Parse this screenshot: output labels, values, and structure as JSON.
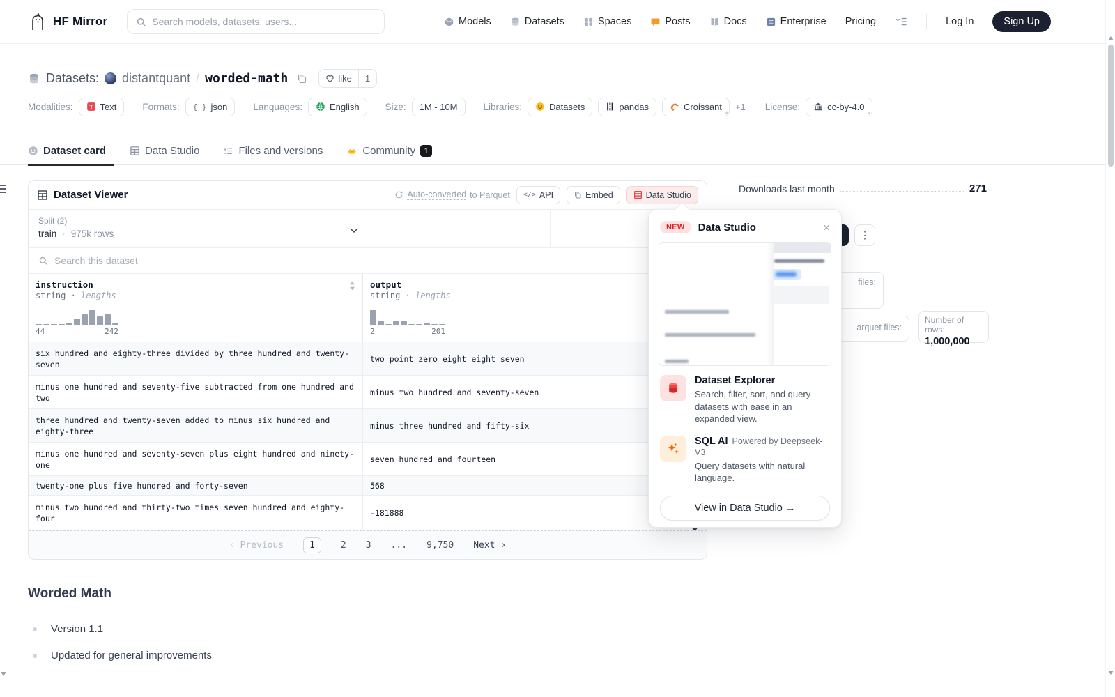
{
  "nav": {
    "brand": "HF Mirror",
    "search_placeholder": "Search models, datasets, users...",
    "items": [
      {
        "label": "Models"
      },
      {
        "label": "Datasets"
      },
      {
        "label": "Spaces"
      },
      {
        "label": "Posts"
      },
      {
        "label": "Docs"
      },
      {
        "label": "Enterprise"
      },
      {
        "label": "Pricing"
      }
    ],
    "login": "Log In",
    "signup": "Sign Up"
  },
  "header": {
    "section": "Datasets:",
    "owner": "distantquant",
    "slash": "/",
    "name": "worded-math",
    "like_label": "like",
    "like_count": "1",
    "meta": {
      "modalities_label": "Modalities:",
      "text_badge": "Text",
      "formats_label": "Formats:",
      "json_badge": "json",
      "json_icon": "{ }",
      "languages_label": "Languages:",
      "english_badge": "English",
      "size_label": "Size:",
      "size_badge": "1M - 10M",
      "libraries_label": "Libraries:",
      "datasets_badge": "Datasets",
      "pandas_badge": "pandas",
      "croissant_badge": "Croissant",
      "more": "+1",
      "license_label": "License:",
      "license_badge": "cc-by-4.0"
    }
  },
  "tabs": {
    "card": "Dataset card",
    "studio": "Data Studio",
    "files": "Files and versions",
    "community": "Community",
    "community_count": "1"
  },
  "viewer": {
    "title": "Dataset Viewer",
    "auto_converted": "Auto-converted",
    "to_parquet": "to Parquet",
    "api_label": "API",
    "api_icon": "</>",
    "embed_label": "Embed",
    "studio_label": "Data Studio",
    "split_label": "Split (2)",
    "split_value": "train",
    "dot": "·",
    "split_rows": "975k rows",
    "search_placeholder": "Search this dataset",
    "columns": {
      "c1": {
        "name": "instruction",
        "type": "string",
        "subtype": "lengths",
        "min": "44",
        "max": "242"
      },
      "c2": {
        "name": "output",
        "type": "string",
        "subtype": "lengths",
        "min": "2",
        "max": "201"
      }
    },
    "rows": [
      {
        "i": "six hundred and eighty-three divided by three hundred and twenty-seven",
        "o": "two point zero eight eight seven"
      },
      {
        "i": "minus one hundred and seventy-five subtracted from one hundred and two",
        "o": "minus two hundred and seventy-seven"
      },
      {
        "i": "three hundred and twenty-seven added to minus six hundred and eighty-three",
        "o": "minus three hundred and fifty-six"
      },
      {
        "i": "minus one hundred and seventy-seven plus eight hundred and ninety-one",
        "o": "seven hundred and fourteen"
      },
      {
        "i": "twenty-one plus five hundred and forty-seven",
        "o": "568"
      },
      {
        "i": "minus two hundred and thirty-two times seven hundred and eighty-four",
        "o": "-181888"
      }
    ],
    "pagination": {
      "prev_icon": "‹",
      "previous": "Previous",
      "p1": "1",
      "p2": "2",
      "p3": "3",
      "ellipsis": "...",
      "last": "9,750",
      "next": "Next",
      "next_icon": "›"
    }
  },
  "popup": {
    "badge": "NEW",
    "title": "Data Studio",
    "close_icon": "×",
    "explorer_title": "Dataset Explorer",
    "explorer_desc": "Search, filter, sort, and query datasets with ease in an expanded view.",
    "sql_title": "SQL AI",
    "sql_powered": "Powered by Deepseek-V3",
    "sql_desc": "Query datasets with natural language.",
    "cta": "View in Data Studio →"
  },
  "sidebar": {
    "downloads_label": "Downloads last month",
    "downloads_value": "271",
    "kebab_icon": "⋮",
    "stat1_fragment": "files:",
    "stat2_fragment": "arquet files:",
    "rows_label": "Number of rows:",
    "rows_value": "1,000,000"
  },
  "readme": {
    "title": "Worded Math",
    "bullets": [
      "Version 1.1",
      "Updated for general improvements"
    ]
  },
  "chart_data": [
    {
      "type": "bar",
      "title": "instruction string lengths",
      "x_min": 44,
      "x_max": 242,
      "values": [
        2,
        2,
        2,
        2,
        4,
        10,
        16,
        22,
        13,
        16,
        3
      ]
    },
    {
      "type": "bar",
      "title": "output string lengths",
      "x_min": 2,
      "x_max": 201,
      "values": [
        22,
        6,
        2,
        6,
        6,
        2,
        2,
        3,
        2,
        2
      ]
    }
  ]
}
